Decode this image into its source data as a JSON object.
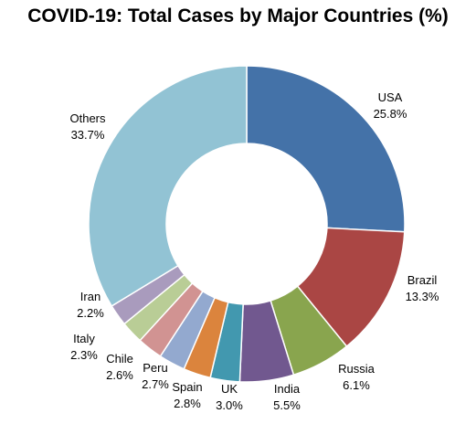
{
  "chart_data": {
    "type": "pie",
    "title": "COVID-19: Total Cases by Major Countries (%)",
    "donut": true,
    "unit": "%",
    "slices": [
      {
        "name": "USA",
        "value": 25.8,
        "label": "25.8%",
        "color": "#4472A8"
      },
      {
        "name": "Brazil",
        "value": 13.3,
        "label": "13.3%",
        "color": "#AA4644"
      },
      {
        "name": "Russia",
        "value": 6.1,
        "label": "6.1%",
        "color": "#89A54E"
      },
      {
        "name": "India",
        "value": 5.5,
        "label": "5.5%",
        "color": "#71588F"
      },
      {
        "name": "UK",
        "value": 3.0,
        "label": "3.0%",
        "color": "#4298AF"
      },
      {
        "name": "Spain",
        "value": 2.8,
        "label": "2.8%",
        "color": "#DB843D"
      },
      {
        "name": "Peru",
        "value": 2.7,
        "label": "2.7%",
        "color": "#93A9CF"
      },
      {
        "name": "Chile",
        "value": 2.6,
        "label": "2.6%",
        "color": "#D19392"
      },
      {
        "name": "Italy",
        "value": 2.3,
        "label": "2.3%",
        "color": "#B9CD96"
      },
      {
        "name": "Iran",
        "value": 2.2,
        "label": "2.2%",
        "color": "#A99BBD"
      },
      {
        "name": "Others",
        "value": 33.7,
        "label": "33.7%",
        "color": "#92C3D4"
      }
    ]
  }
}
